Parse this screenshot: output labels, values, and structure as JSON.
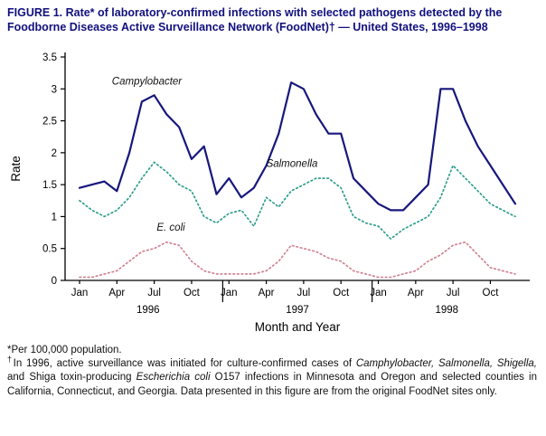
{
  "title": "FIGURE 1. Rate* of laboratory-confirmed infections with selected pathogens detected by the Foodborne Diseases Active Surveillance Network (FoodNet)† — United States, 1996–1998",
  "chart_data": {
    "type": "line",
    "title": "",
    "xlabel": "Month and Year",
    "ylabel": "Rate",
    "ylim": [
      0,
      3.5
    ],
    "yticks": [
      0,
      0.5,
      1,
      1.5,
      2,
      2.5,
      3,
      3.5
    ],
    "ytick_labels": [
      "0",
      "0.5",
      "1",
      "1.5",
      "2",
      "2.5",
      "3",
      "3.5"
    ],
    "xtick_month_labels": [
      "Jan",
      "Apr",
      "Jul",
      "Oct"
    ],
    "years": [
      "1996",
      "1997",
      "1998"
    ],
    "grid": false,
    "legend_position": "inline-annotations",
    "axis_color": "#000000",
    "series": [
      {
        "name": "Campylobacter",
        "color": "#17177d",
        "style": "solid",
        "width": 2.2,
        "values": [
          1.45,
          1.5,
          1.55,
          1.4,
          2.0,
          2.8,
          2.9,
          2.6,
          2.4,
          1.9,
          2.1,
          1.35,
          1.6,
          1.3,
          1.45,
          1.8,
          2.3,
          3.1,
          3.0,
          2.6,
          2.3,
          2.3,
          1.6,
          1.4,
          1.2,
          1.1,
          1.1,
          1.3,
          1.5,
          3.0,
          3.0,
          2.5,
          2.1,
          1.8,
          1.5,
          1.2
        ]
      },
      {
        "name": "Salmonella",
        "color": "#2f9e8f",
        "style": "dotted",
        "width": 1.7,
        "values": [
          1.25,
          1.1,
          1.0,
          1.1,
          1.3,
          1.6,
          1.85,
          1.7,
          1.5,
          1.4,
          1.0,
          0.9,
          1.05,
          1.1,
          0.85,
          1.3,
          1.15,
          1.4,
          1.5,
          1.6,
          1.6,
          1.45,
          1.0,
          0.9,
          0.85,
          0.65,
          0.8,
          0.9,
          1.0,
          1.3,
          1.8,
          1.6,
          1.4,
          1.2,
          1.1,
          1.0
        ]
      },
      {
        "name": "E. coli",
        "color": "#cf8492",
        "style": "dotted",
        "width": 1.7,
        "values": [
          0.05,
          0.05,
          0.1,
          0.15,
          0.3,
          0.45,
          0.5,
          0.6,
          0.55,
          0.3,
          0.15,
          0.1,
          0.1,
          0.1,
          0.1,
          0.15,
          0.3,
          0.55,
          0.5,
          0.45,
          0.35,
          0.3,
          0.15,
          0.1,
          0.05,
          0.05,
          0.1,
          0.15,
          0.3,
          0.4,
          0.55,
          0.6,
          0.4,
          0.2,
          0.15,
          0.1
        ]
      }
    ],
    "annotations": [
      {
        "text": "Campylobacter",
        "month_index": 2.6,
        "y_value": 3.07,
        "italic": true,
        "color": "#111111"
      },
      {
        "text": "Salmonella",
        "month_index": 15.0,
        "y_value": 1.78,
        "italic": true,
        "color": "#111111"
      },
      {
        "text": "E. coli",
        "month_index": 6.2,
        "y_value": 0.78,
        "italic": true,
        "color": "#111111"
      }
    ]
  },
  "footnotes": {
    "star": {
      "marker": "*",
      "segments": [
        {
          "text": "Per 100,000 population.",
          "italic": false
        }
      ]
    },
    "dagger": {
      "marker": "†",
      "segments": [
        {
          "text": "In 1996, active surveillance was initiated for culture-confirmed cases of ",
          "italic": false
        },
        {
          "text": "Camphylobacter, Salmonella, Shigella,",
          "italic": true
        },
        {
          "text": " and Shiga toxin-producing ",
          "italic": false
        },
        {
          "text": "Escherichia coli",
          "italic": true
        },
        {
          "text": " O157 infections in Minnesota and Oregon and selected counties in California, Connecticut, and Georgia. Data presented in this figure are from the original FoodNet sites only.",
          "italic": false
        }
      ]
    }
  }
}
